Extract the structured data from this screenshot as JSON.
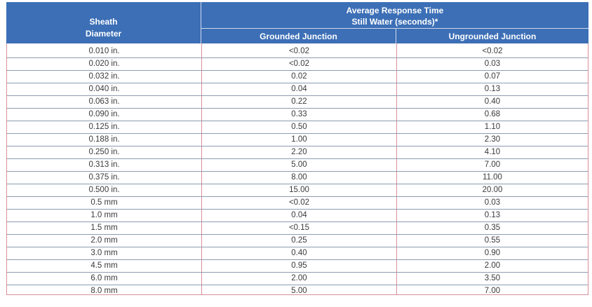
{
  "header": {
    "sheath_line1": "Sheath",
    "sheath_line2": "Diameter",
    "avg_line1": "Average Response Time",
    "avg_line2": "Still Water (seconds)*",
    "grounded": "Grounded Junction",
    "ungrounded": "Ungrounded Junction"
  },
  "colors": {
    "header_bg": "#3c6fb6",
    "border": "#d98f9b",
    "row_line": "#8c9db0"
  },
  "rows": [
    {
      "diameter": "0.010 in.",
      "grounded": "<0.02",
      "ungrounded": "<0.02"
    },
    {
      "diameter": "0.020 in.",
      "grounded": "<0.02",
      "ungrounded": "0.03"
    },
    {
      "diameter": "0.032 in.",
      "grounded": "0.02",
      "ungrounded": "0.07"
    },
    {
      "diameter": "0.040 in.",
      "grounded": "0.04",
      "ungrounded": "0.13"
    },
    {
      "diameter": "0.063 in.",
      "grounded": "0.22",
      "ungrounded": "0.40"
    },
    {
      "diameter": "0.090 in.",
      "grounded": "0.33",
      "ungrounded": "0.68"
    },
    {
      "diameter": "0.125 in.",
      "grounded": "0.50",
      "ungrounded": "1.10"
    },
    {
      "diameter": "0.188 in.",
      "grounded": "1.00",
      "ungrounded": "2.30"
    },
    {
      "diameter": "0.250 in.",
      "grounded": "2.20",
      "ungrounded": "4.10"
    },
    {
      "diameter": "0.313 in.",
      "grounded": "5.00",
      "ungrounded": "7.00"
    },
    {
      "diameter": "0.375 in.",
      "grounded": "8.00",
      "ungrounded": "11.00"
    },
    {
      "diameter": "0.500 in.",
      "grounded": "15.00",
      "ungrounded": "20.00"
    },
    {
      "diameter": "0.5 mm",
      "grounded": "<0.02",
      "ungrounded": "0.03"
    },
    {
      "diameter": "1.0 mm",
      "grounded": "0.04",
      "ungrounded": "0.13"
    },
    {
      "diameter": "1.5 mm",
      "grounded": "<0.15",
      "ungrounded": "0.35"
    },
    {
      "diameter": "2.0 mm",
      "grounded": "0.25",
      "ungrounded": "0.55"
    },
    {
      "diameter": "3.0 mm",
      "grounded": "0.40",
      "ungrounded": "0.90"
    },
    {
      "diameter": "4.5 mm",
      "grounded": "0.95",
      "ungrounded": "2.00"
    },
    {
      "diameter": "6.0 mm",
      "grounded": "2.00",
      "ungrounded": "3.50"
    },
    {
      "diameter": "8.0 mm",
      "grounded": "5.00",
      "ungrounded": "7.00"
    }
  ]
}
